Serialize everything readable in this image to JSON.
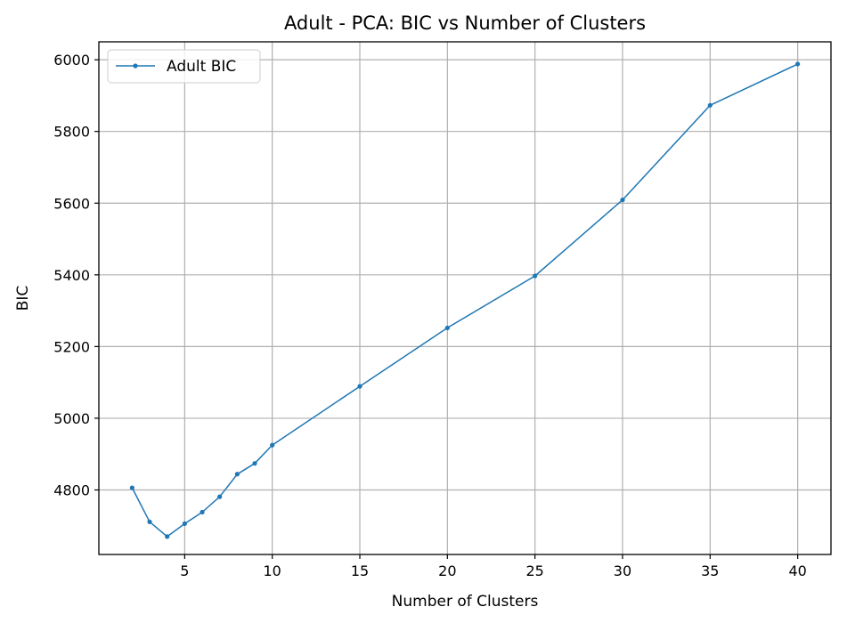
{
  "chart_data": {
    "type": "line",
    "title": "Adult - PCA: BIC vs Number of Clusters",
    "xlabel": "Number of Clusters",
    "ylabel": "BIC",
    "xlim": [
      0.1,
      41.9
    ],
    "ylim": [
      4620,
      6050
    ],
    "xticks": [
      5,
      10,
      15,
      20,
      25,
      30,
      35,
      40
    ],
    "yticks": [
      4800,
      5000,
      5200,
      5400,
      5600,
      5800,
      6000
    ],
    "grid": true,
    "legend": "top-left",
    "series": [
      {
        "name": "Adult BIC",
        "color": "#1f77b4",
        "x": [
          2,
          3,
          4,
          5,
          6,
          7,
          8,
          9,
          10,
          15,
          20,
          25,
          30,
          35,
          40
        ],
        "y": [
          4806,
          4711,
          4670,
          4706,
          4738,
          4781,
          4844,
          4874,
          4925,
          5089,
          5252,
          5397,
          5609,
          5873,
          5988
        ]
      }
    ]
  }
}
